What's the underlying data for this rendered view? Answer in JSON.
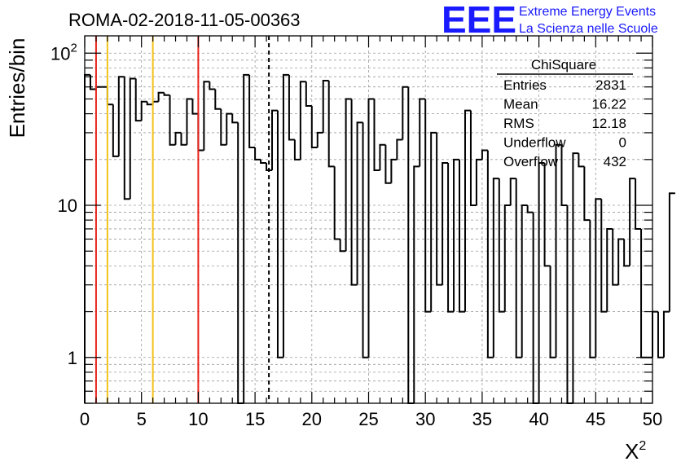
{
  "header": {
    "run_title": "ROMA-02-2018-11-05-00363",
    "logo_mark": "EEE",
    "logo_line1": "Extreme Energy Events",
    "logo_line2": "La Scienza nelle Scuole",
    "logo_color": "#1a1aff"
  },
  "chart_data": {
    "type": "histogram",
    "title": "ROMA-02-2018-11-05-00363",
    "xlabel": "X",
    "xlabel_superscript": "2",
    "ylabel": "Entries/bin",
    "xlim": [
      0,
      50
    ],
    "ylim": [
      0.5,
      130
    ],
    "log_y": true,
    "grid": true,
    "bin_width": 0.5,
    "x_ticks": [
      "0",
      "5",
      "10",
      "15",
      "20",
      "25",
      "30",
      "35",
      "40",
      "45",
      "50"
    ],
    "y_ticks": [
      {
        "value": 1,
        "label": "1"
      },
      {
        "value": 10,
        "label": "10"
      },
      {
        "value": 100,
        "label": "10",
        "exponent": "2"
      }
    ],
    "bin_values": [
      72,
      58,
      60,
      60,
      46,
      21,
      70,
      11,
      68,
      36,
      48,
      46,
      48,
      55,
      53,
      25,
      30,
      25,
      50,
      40,
      23,
      65,
      58,
      43,
      25,
      40,
      35,
      0,
      72,
      24,
      20,
      19,
      17,
      42,
      1,
      72,
      27,
      20,
      65,
      45,
      24,
      30,
      66,
      18,
      6,
      5,
      50,
      3,
      35,
      1,
      50,
      17,
      25,
      14,
      20,
      27,
      60,
      0,
      18,
      50,
      2,
      30,
      3,
      19,
      2,
      20,
      2,
      42,
      10,
      20,
      23,
      1,
      15,
      2,
      10,
      15,
      1,
      10,
      9,
      0,
      19,
      4,
      1,
      25,
      10,
      0,
      22,
      18,
      8,
      1,
      11,
      2,
      7,
      3,
      6,
      4,
      15,
      7,
      1,
      1,
      2,
      1,
      2,
      12
    ],
    "vlines": [
      {
        "x": 1,
        "color": "#e8231c",
        "style": "solid"
      },
      {
        "x": 2,
        "color": "#f2c21b",
        "style": "solid"
      },
      {
        "x": 6,
        "color": "#f2c21b",
        "style": "solid"
      },
      {
        "x": 10,
        "color": "#e8231c",
        "style": "solid"
      },
      {
        "x": 16.22,
        "color": "#000000",
        "style": "dashed"
      }
    ],
    "stats_box": {
      "name": "ChiSquare",
      "rows": [
        {
          "label": "Entries",
          "value": "2831"
        },
        {
          "label": "Mean",
          "value": "16.22"
        },
        {
          "label": "RMS",
          "value": "12.18"
        },
        {
          "label": "Underflow",
          "value": "0"
        },
        {
          "label": "Overflow",
          "value": "432"
        }
      ]
    }
  }
}
